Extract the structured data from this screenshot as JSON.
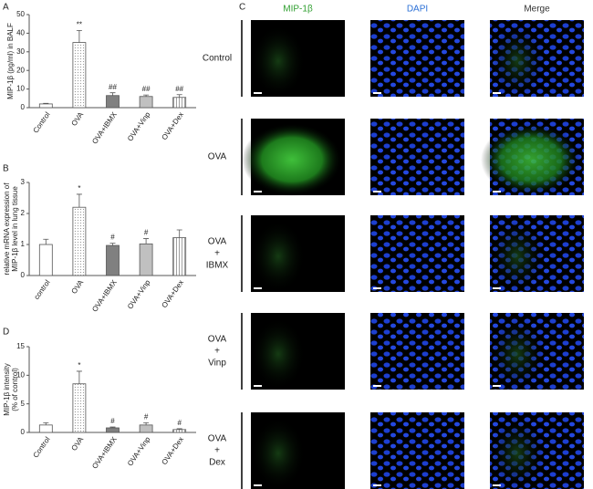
{
  "chart_data": [
    {
      "type": "bar",
      "panel": "A",
      "y_label": [
        "MIP-1β (pg/ml) in BALF"
      ],
      "categories": [
        "Control",
        "OVA",
        "OVA+IBMX",
        "OVA+Vinp",
        "OVA+Dex"
      ],
      "values": [
        2,
        35,
        6.5,
        6,
        5.5
      ],
      "errors": [
        0.3,
        6.5,
        1.5,
        0.8,
        1.5
      ],
      "annotations": [
        null,
        "**",
        "##",
        "##",
        "##"
      ],
      "colors": [
        "#ffffff",
        "#ffffff",
        "#808080",
        "#c0c0c0",
        "#ffffff"
      ],
      "patterns": [
        "none",
        "dots",
        "none",
        "none",
        "vlines"
      ],
      "ylim": [
        0,
        50
      ],
      "yticks": [
        0,
        10,
        20,
        30,
        40,
        50
      ]
    },
    {
      "type": "bar",
      "panel": "B",
      "y_label": [
        "relative mRNA expression  of",
        "MIP-1β level in lung tissue"
      ],
      "categories": [
        "control",
        "OVA",
        "OVA+IBMX",
        "OVA+Vinp",
        "OVA+Dex"
      ],
      "values": [
        1.0,
        2.2,
        0.97,
        1.02,
        1.22
      ],
      "errors": [
        0.17,
        0.42,
        0.07,
        0.17,
        0.25
      ],
      "annotations": [
        null,
        "*",
        "#",
        "#",
        null
      ],
      "colors": [
        "#ffffff",
        "#ffffff",
        "#808080",
        "#c0c0c0",
        "#ffffff"
      ],
      "patterns": [
        "none",
        "dots",
        "none",
        "none",
        "vlines"
      ],
      "ylim": [
        0,
        3
      ],
      "yticks": [
        0,
        1,
        2,
        3
      ]
    },
    {
      "type": "bar",
      "panel": "D",
      "y_label": [
        "MIP-1β intensity",
        "(% of control)"
      ],
      "categories": [
        "Control",
        "OVA",
        "OVA+IBMX",
        "OVA+Vinp",
        "OVA+Dex"
      ],
      "values": [
        1.3,
        8.5,
        0.8,
        1.3,
        0.5
      ],
      "errors": [
        0.4,
        2.2,
        0.15,
        0.4,
        0.15
      ],
      "annotations": [
        null,
        "*",
        "#",
        "#",
        "#"
      ],
      "colors": [
        "#ffffff",
        "#ffffff",
        "#808080",
        "#c0c0c0",
        "#ffffff"
      ],
      "patterns": [
        "none",
        "dots",
        "none",
        "none",
        "vlines"
      ],
      "ylim": [
        0,
        15
      ],
      "yticks": [
        0,
        5,
        10,
        15
      ]
    }
  ],
  "panel_c": {
    "panel": "C",
    "columns": [
      "MIP-1β",
      "DAPI",
      "Merge"
    ],
    "rows": [
      [
        "Control"
      ],
      [
        "OVA"
      ],
      [
        "OVA",
        "+",
        "IBMX"
      ],
      [
        "OVA",
        "+",
        "Vinp"
      ],
      [
        "OVA",
        "+",
        "Dex"
      ]
    ]
  }
}
